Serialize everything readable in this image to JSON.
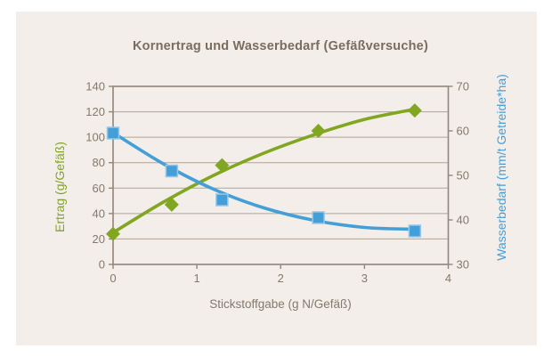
{
  "chart_data": {
    "type": "scatter",
    "subtype": "scatter points with smooth fitted trend curves, dual y-axes",
    "title": "Kornertrag und Wasserbedarf (Gefäßversuche)",
    "xlabel": "Stickstoffgabe (g N/Gefäß)",
    "ylabel_left": "Ertrag (g/Gefäß)",
    "ylabel_right": "Wasserbedarf (mm/t Getreide*ha)",
    "xlim": [
      0,
      4
    ],
    "ylim_left": [
      0,
      140
    ],
    "ylim_right": [
      30,
      70
    ],
    "x_ticks": [
      0,
      1,
      2,
      3,
      4
    ],
    "y_ticks_left": [
      0,
      20,
      40,
      60,
      80,
      100,
      120,
      140
    ],
    "y_ticks_right": [
      30,
      40,
      50,
      60,
      70
    ],
    "grid": "horizontal gridlines at left-axis steps of 20",
    "legend": "none",
    "series": [
      {
        "name": "Ertrag",
        "axis": "left",
        "marker": "diamond",
        "color": "#81a621",
        "x": [
          0,
          0.7,
          1.3,
          2.45,
          3.6
        ],
        "y": [
          24,
          47,
          78,
          105,
          121
        ],
        "trend": [
          [
            0,
            25
          ],
          [
            0.6,
            49
          ],
          [
            1.2,
            70
          ],
          [
            1.8,
            87.5
          ],
          [
            2.4,
            102
          ],
          [
            3.0,
            114
          ],
          [
            3.6,
            122
          ]
        ]
      },
      {
        "name": "Wasserbedarf",
        "axis": "right",
        "marker": "square",
        "color": "#449fd8",
        "marker_stroke": "#9ac6e8",
        "x": [
          0,
          0.7,
          1.3,
          2.45,
          3.6
        ],
        "y": [
          59.5,
          51,
          44.5,
          40.5,
          37.5
        ],
        "trend": [
          [
            0,
            59.6
          ],
          [
            0.6,
            52.6
          ],
          [
            1.2,
            46.9
          ],
          [
            1.8,
            42.7
          ],
          [
            2.4,
            39.9
          ],
          [
            3.0,
            38.3
          ],
          [
            3.6,
            37.9
          ]
        ]
      }
    ],
    "colors": {
      "card_background": "#f3eee9",
      "page_background": "#ffffff",
      "title_text": "#7a6d60",
      "tick_text": "#85786c",
      "axis_line": "#93867a",
      "gridline": "#b2a495"
    }
  }
}
